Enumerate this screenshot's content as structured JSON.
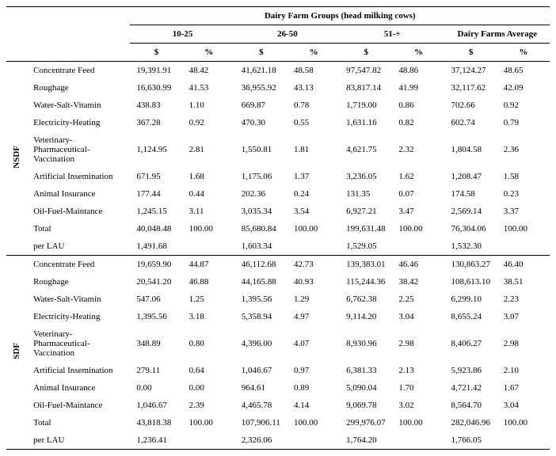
{
  "header": {
    "group_title": "Dairy Farm Groups (head milking cows)",
    "groups": [
      "10-25",
      "26-50",
      "51-+",
      "Dairy Farms Average"
    ],
    "subcols": [
      "$",
      "%",
      "$",
      "%",
      "$",
      "%",
      "$",
      "%"
    ]
  },
  "sections": [
    {
      "name": "NSDF",
      "rows": [
        {
          "label": "Concentrate Feed",
          "v": [
            "19,391.91",
            "48.42",
            "41,621.18",
            "48.58",
            "97,547.82",
            "48.86",
            "37,124.27",
            "48.65"
          ]
        },
        {
          "label": "Roughage",
          "v": [
            "16,630.99",
            "41.53",
            "36,955.92",
            "43.13",
            "83,817.14",
            "41.99",
            "32,117.62",
            "42.09"
          ]
        },
        {
          "label": "Water-Salt-Vitamin",
          "v": [
            "438.83",
            "1.10",
            "669.87",
            "0.78",
            "1,719.00",
            "0.86",
            "702.66",
            "0.92"
          ]
        },
        {
          "label": "Electricity-Heating",
          "v": [
            "367.28",
            "0.92",
            "470.30",
            "0.55",
            "1,631.16",
            "0.82",
            "602.74",
            "0.79"
          ]
        },
        {
          "label": "Veterinary-Pharmaceutical-Vaccination",
          "v": [
            "1,124.95",
            "2.81",
            "1,550.81",
            "1.81",
            "4,621.75",
            "2.32",
            "1,804.58",
            "2.36"
          ]
        },
        {
          "label": "Artificial Insemination",
          "v": [
            "671.95",
            "1.68",
            "1,175.06",
            "1.37",
            "3,236.05",
            "1.62",
            "1,208.47",
            "1.58"
          ]
        },
        {
          "label": "Animal Insurance",
          "v": [
            "177.44",
            "0.44",
            "202.36",
            "0.24",
            "131.35",
            "0.07",
            "174.58",
            "0.23"
          ]
        },
        {
          "label": "Oil-Fuel-Maintance",
          "v": [
            "1,245.15",
            "3.11",
            "3,035.34",
            "3.54",
            "6,927.21",
            "3.47",
            "2,569.14",
            "3.37"
          ]
        },
        {
          "label": "Total",
          "v": [
            "40,048.48",
            "100.00",
            "85,680.84",
            "100.00",
            "199,631.48",
            "100.00",
            "76,304.06",
            "100.00"
          ]
        },
        {
          "label": "per LAU",
          "v": [
            "1,491.68",
            "",
            "1,603.34",
            "",
            "1,529.05",
            "",
            "1,532.30",
            ""
          ]
        }
      ]
    },
    {
      "name": "SDF",
      "rows": [
        {
          "label": "Concentrate Feed",
          "v": [
            "19,659.90",
            "44.87",
            "46,112.68",
            "42.73",
            "139,383.01",
            "46.46",
            "130,863.27",
            "46.40"
          ]
        },
        {
          "label": "Roughage",
          "v": [
            "20,541.20",
            "46.88",
            "44,165.88",
            "40.93",
            "115,244.36",
            "38.42",
            "108,613.10",
            "38.51"
          ]
        },
        {
          "label": "Water-Salt-Vitamin",
          "v": [
            "547.06",
            "1.25",
            "1,395.56",
            "1.29",
            "6,762.38",
            "2.25",
            "6,299.10",
            "2.23"
          ]
        },
        {
          "label": "Electricity-Heating",
          "v": [
            "1,395.56",
            "3.18",
            "5,358.94",
            "4.97",
            "9,114.20",
            "3.04",
            "8,655.24",
            "3.07"
          ]
        },
        {
          "label": "Veterinary-Pharmaceutical-Vaccination",
          "v": [
            "348.89",
            "0.80",
            "4,396.00",
            "4.07",
            "8,930.96",
            "2.98",
            "8,406.27",
            "2.98"
          ]
        },
        {
          "label": "Artificial Insemination",
          "v": [
            "279.11",
            "0.64",
            "1,046.67",
            "0.97",
            "6,381.33",
            "2.13",
            "5,923.86",
            "2.10"
          ]
        },
        {
          "label": "Animal Insurance",
          "v": [
            "0.00",
            "0.00",
            "964.61",
            "0.89",
            "5,090.04",
            "1.70",
            "4,721.42",
            "1.67"
          ]
        },
        {
          "label": "Oil-Fuel-Maintance",
          "v": [
            "1,046.67",
            "2.39",
            "4,465.78",
            "4.14",
            "9,069.78",
            "3.02",
            "8,564.70",
            "3.04"
          ]
        },
        {
          "label": "Total",
          "v": [
            "43,818.38",
            "100.00",
            "107,906.11",
            "100.00",
            "299,976.07",
            "100.00",
            "282,046.96",
            "100.00"
          ]
        },
        {
          "label": "per LAU",
          "v": [
            "1,236.41",
            "",
            "2,326.06",
            "",
            "1,764.20",
            "",
            "1,766.05",
            ""
          ]
        }
      ]
    }
  ]
}
